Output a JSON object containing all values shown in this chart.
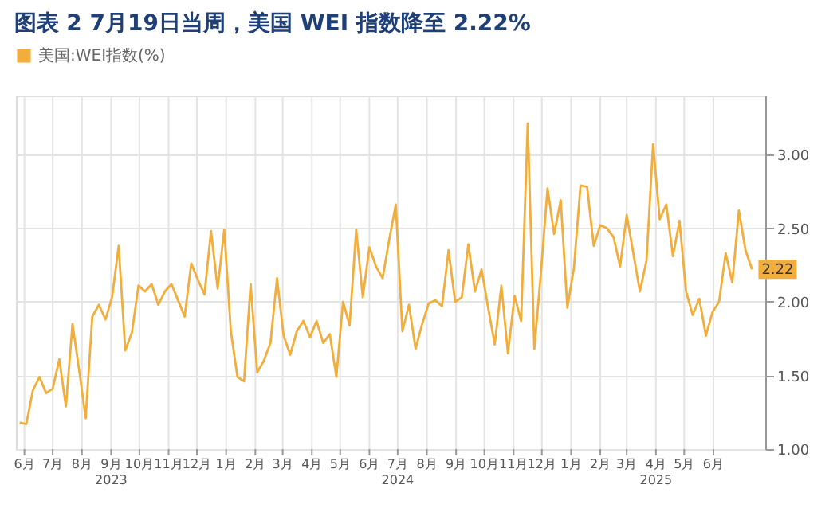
{
  "chart_data": {
    "type": "line",
    "title": "图表 2   7月19日当周，美国 WEI 指数降至 2.22%",
    "x": [
      "2023-06-03",
      "2023-06-10",
      "2023-06-17",
      "2023-06-24",
      "2023-07-01",
      "2023-07-08",
      "2023-07-15",
      "2023-07-22",
      "2023-07-29",
      "2023-08-05",
      "2023-08-12",
      "2023-08-19",
      "2023-08-26",
      "2023-09-02",
      "2023-09-09",
      "2023-09-16",
      "2023-09-23",
      "2023-09-30",
      "2023-10-07",
      "2023-10-14",
      "2023-10-21",
      "2023-10-28",
      "2023-11-04",
      "2023-11-11",
      "2023-11-18",
      "2023-11-25",
      "2023-12-02",
      "2023-12-09",
      "2023-12-16",
      "2023-12-23",
      "2023-12-30",
      "2024-01-06",
      "2024-01-13",
      "2024-01-20",
      "2024-01-27",
      "2024-02-03",
      "2024-02-10",
      "2024-02-17",
      "2024-02-24",
      "2024-03-02",
      "2024-03-09",
      "2024-03-16",
      "2024-03-23",
      "2024-03-30",
      "2024-04-06",
      "2024-04-13",
      "2024-04-20",
      "2024-04-27",
      "2024-05-04",
      "2024-05-11",
      "2024-05-18",
      "2024-05-25",
      "2024-06-01",
      "2024-06-08",
      "2024-06-15",
      "2024-06-22",
      "2024-06-29",
      "2024-07-06",
      "2024-07-13",
      "2024-07-20",
      "2024-07-27",
      "2024-08-03",
      "2024-08-10",
      "2024-08-17",
      "2024-08-24",
      "2024-08-31",
      "2024-09-07",
      "2024-09-14",
      "2024-09-21",
      "2024-09-28",
      "2024-10-05",
      "2024-10-12",
      "2024-10-19",
      "2024-10-26",
      "2024-11-02",
      "2024-11-09",
      "2024-11-16",
      "2024-11-23",
      "2024-11-30",
      "2024-12-07",
      "2024-12-14",
      "2024-12-21",
      "2024-12-28",
      "2025-01-04",
      "2025-01-11",
      "2025-01-18",
      "2025-01-25",
      "2025-02-01",
      "2025-02-08",
      "2025-02-15",
      "2025-02-22",
      "2025-03-01",
      "2025-03-08",
      "2025-03-15",
      "2025-03-22",
      "2025-03-29",
      "2025-04-05",
      "2025-04-12",
      "2025-04-19",
      "2025-04-26",
      "2025-05-03",
      "2025-05-10",
      "2025-05-17",
      "2025-05-24",
      "2025-05-31",
      "2025-06-07",
      "2025-06-14",
      "2025-06-21",
      "2025-06-28",
      "2025-07-05",
      "2025-07-12",
      "2025-07-19"
    ],
    "series": [
      {
        "name": "美国:WEI指数(%)",
        "color": "#f2ae3d",
        "values": [
          1.18,
          1.17,
          1.4,
          1.49,
          1.38,
          1.41,
          1.61,
          1.29,
          1.85,
          1.54,
          1.21,
          1.9,
          1.98,
          1.88,
          2.03,
          2.38,
          1.67,
          1.79,
          2.11,
          2.07,
          2.12,
          1.98,
          2.07,
          2.12,
          2.01,
          1.9,
          2.26,
          2.15,
          2.05,
          2.48,
          2.09,
          2.49,
          1.8,
          1.49,
          1.46,
          2.12,
          1.52,
          1.6,
          1.72,
          2.16,
          1.77,
          1.64,
          1.8,
          1.87,
          1.76,
          1.87,
          1.72,
          1.78,
          1.49,
          2.0,
          1.84,
          2.49,
          2.03,
          2.37,
          2.24,
          2.16,
          2.42,
          2.66,
          1.8,
          1.98,
          1.68,
          1.85,
          1.99,
          2.01,
          1.97,
          2.35,
          2.0,
          2.03,
          2.39,
          2.07,
          2.22,
          1.96,
          1.71,
          2.11,
          1.65,
          2.04,
          1.87,
          3.21,
          1.68,
          2.2,
          2.77,
          2.46,
          2.69,
          1.96,
          2.23,
          2.79,
          2.78,
          2.38,
          2.52,
          2.5,
          2.44,
          2.24,
          2.59,
          2.33,
          2.07,
          2.28,
          3.07,
          2.56,
          2.66,
          2.31,
          2.55,
          2.07,
          1.91,
          2.02,
          1.77,
          1.93,
          2.0,
          2.33,
          2.13,
          2.62,
          2.35,
          2.22
        ],
        "value_labels": [
          null,
          null,
          null,
          null,
          null,
          null,
          null,
          null,
          null,
          null,
          null,
          null,
          null,
          null,
          null,
          null,
          null,
          null,
          null,
          null,
          null,
          null,
          null,
          null,
          null,
          null,
          null,
          null,
          null,
          null,
          null,
          null,
          null,
          null,
          null,
          null,
          null,
          null,
          null,
          null,
          null,
          null,
          null,
          null,
          null,
          null,
          null,
          null,
          null,
          null,
          null,
          null,
          null,
          null,
          null,
          null,
          null,
          null,
          null,
          null,
          null,
          null,
          null,
          null,
          null,
          null,
          null,
          null,
          null,
          null,
          null,
          null,
          null,
          null,
          null,
          null,
          null,
          null,
          null,
          null,
          null,
          null,
          null,
          null,
          null,
          null,
          null,
          null,
          null,
          null,
          null,
          null,
          null,
          null,
          null,
          null,
          null,
          null,
          null,
          null,
          null,
          null,
          null,
          null,
          null,
          null,
          null,
          null,
          null,
          null,
          null,
          "2.22"
        ]
      }
    ],
    "xlim": [
      "2023-05-30",
      "2025-08-02"
    ],
    "xticks": [
      {
        "value": "2023-06-08",
        "label": "6月"
      },
      {
        "value": "2023-07-08",
        "label": "7月"
      },
      {
        "value": "2023-08-08",
        "label": "8月"
      },
      {
        "value": "2023-09-08",
        "label": "9月\n2023"
      },
      {
        "value": "2023-10-08",
        "label": "10月"
      },
      {
        "value": "2023-11-08",
        "label": "11月"
      },
      {
        "value": "2023-12-08",
        "label": "12月"
      },
      {
        "value": "2024-01-08",
        "label": "1月"
      },
      {
        "value": "2024-02-08",
        "label": "2月"
      },
      {
        "value": "2024-03-08",
        "label": "3月"
      },
      {
        "value": "2024-04-08",
        "label": "4月"
      },
      {
        "value": "2024-05-08",
        "label": "5月"
      },
      {
        "value": "2024-06-08",
        "label": "6月"
      },
      {
        "value": "2024-07-08",
        "label": "7月\n2024"
      },
      {
        "value": "2024-08-08",
        "label": "8月"
      },
      {
        "value": "2024-09-08",
        "label": "9月"
      },
      {
        "value": "2024-10-08",
        "label": "10月"
      },
      {
        "value": "2024-11-08",
        "label": "11月"
      },
      {
        "value": "2024-12-08",
        "label": "12月"
      },
      {
        "value": "2025-01-08",
        "label": "1月"
      },
      {
        "value": "2025-02-08",
        "label": "2月"
      },
      {
        "value": "2025-03-08",
        "label": "3月"
      },
      {
        "value": "2025-04-08",
        "label": "4月\n2025"
      },
      {
        "value": "2025-05-08",
        "label": "5月"
      },
      {
        "value": "2025-06-08",
        "label": "6月"
      }
    ],
    "ylim": [
      1.0,
      3.4
    ],
    "yticks": [
      {
        "value": 1.0,
        "label": "1.00"
      },
      {
        "value": 1.5,
        "label": "1.50"
      },
      {
        "value": 2.0,
        "label": "2.00"
      },
      {
        "value": 2.5,
        "label": "2.50"
      },
      {
        "value": 3.0,
        "label": "3.00"
      }
    ],
    "grid": true,
    "legend": "top",
    "marker": "none",
    "line_style": "solid"
  }
}
